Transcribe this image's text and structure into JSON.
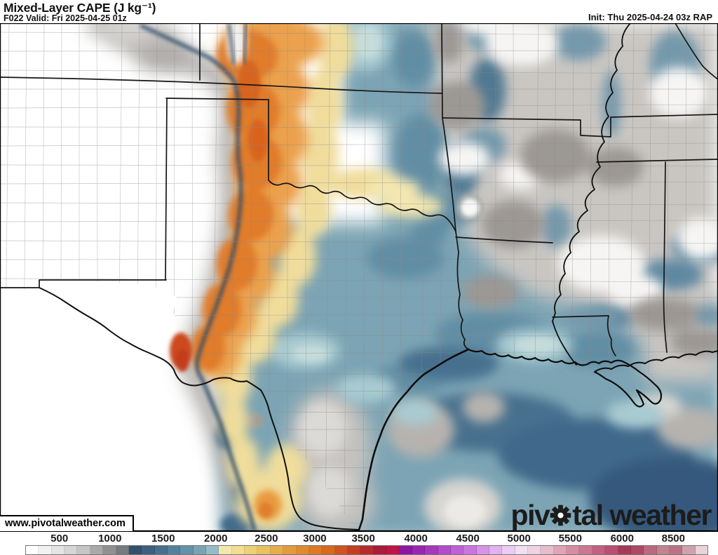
{
  "header": {
    "title": "Mixed-Layer CAPE (J kg⁻¹)",
    "subtitle": "F022 Valid: Fri 2025-04-25 01z",
    "init": "Init: Thu 2025-04-24 03z RAP"
  },
  "map": {
    "watermark_url": "www.pivotalweather.com",
    "logo": {
      "pre": "piv",
      "post": "tal weather"
    }
  },
  "colorbar": {
    "unit": "J kg⁻¹",
    "ticks": [
      {
        "label": "500",
        "pos": 5.0
      },
      {
        "label": "1000",
        "pos": 12.4
      },
      {
        "label": "1500",
        "pos": 20.2
      },
      {
        "label": "2000",
        "pos": 27.9
      },
      {
        "label": "2500",
        "pos": 35.3
      },
      {
        "label": "3000",
        "pos": 42.4
      },
      {
        "label": "3500",
        "pos": 49.5
      },
      {
        "label": "4000",
        "pos": 57.2
      },
      {
        "label": "4500",
        "pos": 64.8
      },
      {
        "label": "5000",
        "pos": 72.3
      },
      {
        "label": "5500",
        "pos": 79.8
      },
      {
        "label": "6000",
        "pos": 87.4
      },
      {
        "label": "8500",
        "pos": 94.9
      }
    ],
    "segments": [
      "#ffffff",
      "#f1f1f1",
      "#e4e4e4",
      "#d6d6d6",
      "#c6c6c6",
      "#a9a9a9",
      "#909090",
      "#757b80",
      "#34506a",
      "#3d6080",
      "#47708f",
      "#53819d",
      "#6392a9",
      "#78a4b4",
      "#95bcc5",
      "#f4e7ae",
      "#f2dd92",
      "#eed077",
      "#e9c160",
      "#e5ad4b",
      "#e29c3d",
      "#df8c31",
      "#db7b26",
      "#d5691e",
      "#cd5420",
      "#c23f21",
      "#b52b2e",
      "#a91c3a",
      "#bd1545",
      "#8d17a3",
      "#9826b0",
      "#a438bd",
      "#b14cca",
      "#bd61d5",
      "#c977de",
      "#d694e7",
      "#e2b1ef",
      "#eccbf4",
      "#f2dff2",
      "#eed3e4",
      "#e7bccb",
      "#dfa4b5",
      "#d68da3",
      "#cd7792",
      "#c36181",
      "#b94f72",
      "#a53a57",
      "#ad4862",
      "#b96a7e",
      "#c08390",
      "#ba7386",
      "#cfa3ad",
      "#e9d2d8"
    ]
  }
}
